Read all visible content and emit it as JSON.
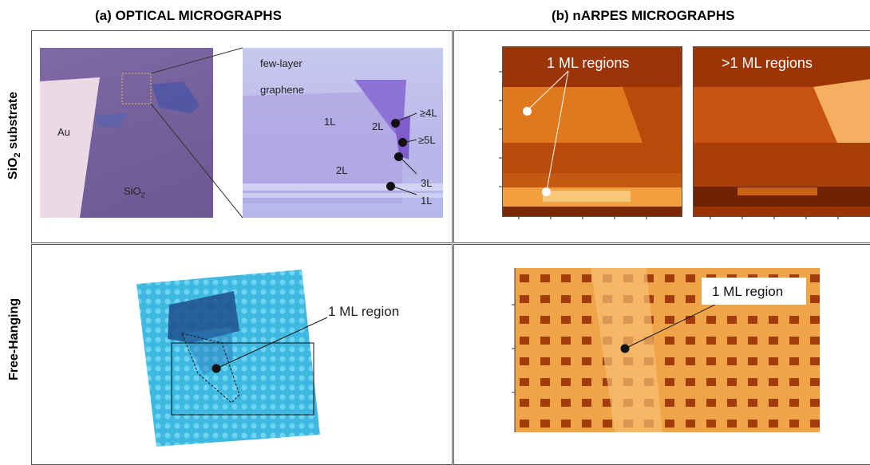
{
  "headers": {
    "optical": "(a) OPTICAL MICROGRAPHS",
    "narpes": "(b) nARPES MICROGRAPHS"
  },
  "rows": {
    "sio2_prefix": "SiO",
    "sio2_sub": "2",
    "sio2_suffix": " substrate",
    "free_hanging": "Free-Hanging"
  },
  "optical_sio2": {
    "au_label": "Au",
    "sio2_label": "SiO",
    "sio2_sub": "2",
    "zoom_title_line1": "few-layer",
    "zoom_title_line2": "graphene",
    "layer_labels": {
      "l1_left": "1L",
      "l2_top": "2L",
      "l2_bottom": "2L",
      "ge4": "≥4L",
      "ge5": "≥5L",
      "l3": "3L",
      "l1_right": "1L"
    }
  },
  "narpes_sio2": {
    "left_label": "1 ML regions",
    "right_label": ">1 ML regions"
  },
  "optical_free": {
    "region_label": "1 ML region"
  },
  "narpes_free": {
    "region_label": "1 ML region"
  }
}
